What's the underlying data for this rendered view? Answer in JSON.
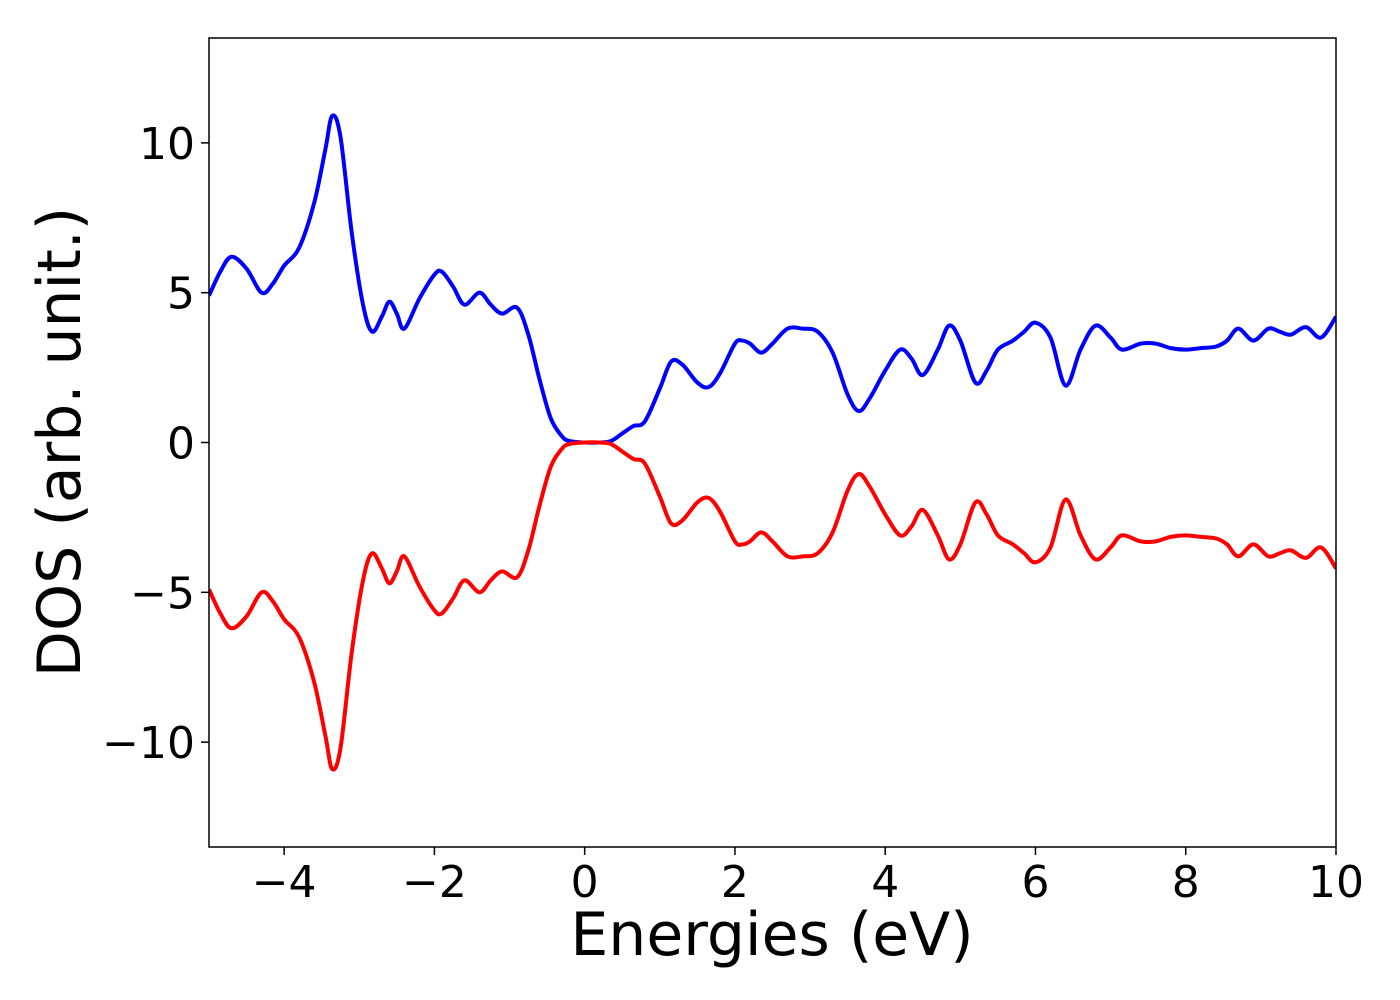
{
  "chart_data": {
    "type": "line",
    "xlabel": "Energies (eV)",
    "ylabel": "DOS (arb. unit.)",
    "x": [
      -5,
      -4.85,
      -4.7,
      -4.5,
      -4.3,
      -4.15,
      -4.0,
      -3.8,
      -3.6,
      -3.45,
      -3.36,
      -3.25,
      -3.1,
      -2.95,
      -2.83,
      -2.7,
      -2.6,
      -2.5,
      -2.4,
      -2.2,
      -2.0,
      -1.9,
      -1.75,
      -1.6,
      -1.4,
      -1.25,
      -1.1,
      -0.9,
      -0.75,
      -0.6,
      -0.45,
      -0.3,
      -0.2,
      0,
      0.2,
      0.35,
      0.5,
      0.65,
      0.8,
      1.0,
      1.15,
      1.3,
      1.5,
      1.65,
      1.8,
      2.0,
      2.1,
      2.2,
      2.35,
      2.5,
      2.7,
      2.9,
      3.1,
      3.3,
      3.5,
      3.65,
      3.8,
      4.0,
      4.2,
      4.35,
      4.5,
      4.7,
      4.85,
      5.0,
      5.2,
      5.35,
      5.5,
      5.7,
      5.85,
      6.0,
      6.2,
      6.4,
      6.6,
      6.8,
      7.0,
      7.15,
      7.4,
      7.6,
      7.8,
      8.0,
      8.2,
      8.4,
      8.55,
      8.7,
      8.9,
      9.1,
      9.25,
      9.4,
      9.6,
      9.8,
      10
    ],
    "series": [
      {
        "color": "#0000ff",
        "values": [
          4.9,
          5.7,
          6.2,
          5.8,
          5.0,
          5.3,
          5.9,
          6.5,
          8.0,
          9.8,
          10.9,
          10.2,
          7.0,
          4.6,
          3.7,
          4.2,
          4.7,
          4.3,
          3.8,
          4.8,
          5.6,
          5.7,
          5.2,
          4.6,
          5.0,
          4.6,
          4.3,
          4.5,
          3.6,
          2.1,
          0.8,
          0.2,
          0.05,
          0,
          0,
          0.05,
          0.3,
          0.55,
          0.7,
          1.8,
          2.7,
          2.6,
          2.0,
          1.85,
          2.3,
          3.3,
          3.4,
          3.3,
          3.0,
          3.3,
          3.8,
          3.8,
          3.7,
          3.0,
          1.6,
          1.05,
          1.5,
          2.4,
          3.1,
          2.8,
          2.25,
          3.1,
          3.9,
          3.4,
          2.0,
          2.4,
          3.1,
          3.4,
          3.7,
          4.0,
          3.5,
          1.9,
          3.1,
          3.9,
          3.5,
          3.1,
          3.3,
          3.3,
          3.15,
          3.1,
          3.15,
          3.2,
          3.4,
          3.8,
          3.4,
          3.8,
          3.7,
          3.6,
          3.85,
          3.5,
          4.2
        ]
      },
      {
        "color": "#ff0000",
        "values": [
          -4.9,
          -5.7,
          -6.2,
          -5.8,
          -5.0,
          -5.3,
          -5.9,
          -6.5,
          -8.0,
          -9.8,
          -10.9,
          -10.2,
          -7.0,
          -4.6,
          -3.7,
          -4.2,
          -4.7,
          -4.3,
          -3.8,
          -4.8,
          -5.6,
          -5.7,
          -5.2,
          -4.6,
          -5.0,
          -4.6,
          -4.3,
          -4.5,
          -3.6,
          -2.1,
          -0.8,
          -0.2,
          -0.05,
          0,
          0,
          -0.05,
          -0.3,
          -0.55,
          -0.7,
          -1.8,
          -2.7,
          -2.6,
          -2.0,
          -1.85,
          -2.3,
          -3.3,
          -3.4,
          -3.3,
          -3.0,
          -3.3,
          -3.8,
          -3.8,
          -3.7,
          -3.0,
          -1.6,
          -1.05,
          -1.5,
          -2.4,
          -3.1,
          -2.8,
          -2.25,
          -3.1,
          -3.9,
          -3.4,
          -2.0,
          -2.4,
          -3.1,
          -3.4,
          -3.7,
          -4.0,
          -3.5,
          -1.9,
          -3.1,
          -3.9,
          -3.5,
          -3.1,
          -3.3,
          -3.3,
          -3.15,
          -3.1,
          -3.15,
          -3.2,
          -3.4,
          -3.8,
          -3.4,
          -3.8,
          -3.7,
          -3.6,
          -3.85,
          -3.5,
          -4.2
        ]
      }
    ],
    "xlim": [
      -5,
      10
    ],
    "xticks": [
      {
        "value": -4,
        "label": "−4"
      },
      {
        "value": -2,
        "label": "−2"
      },
      0,
      2,
      4,
      6,
      8,
      10
    ],
    "ylim": [
      -13.5,
      13.5
    ],
    "yticks": [
      {
        "value": -10,
        "label": "−10"
      },
      {
        "value": -5,
        "label": "−5"
      },
      0,
      5,
      10
    ],
    "grid": false
  }
}
